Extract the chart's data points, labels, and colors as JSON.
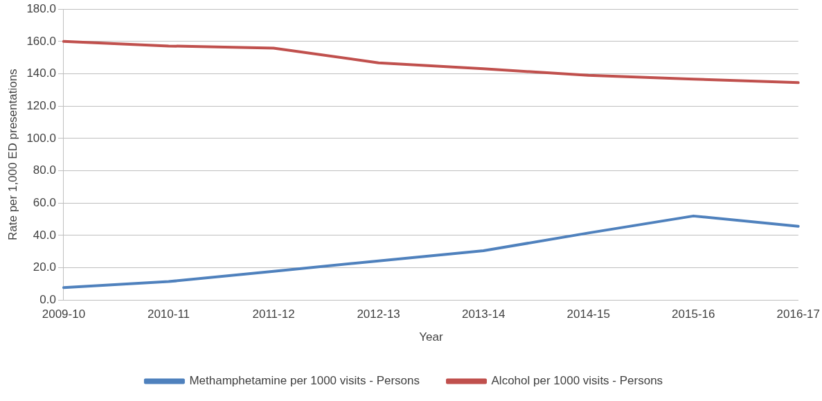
{
  "chart_data": {
    "type": "line",
    "xlabel": "Year",
    "ylabel": "Rate per 1,000 ED presentations",
    "categories": [
      "2009-10",
      "2010-11",
      "2011-12",
      "2012-13",
      "2013-14",
      "2014-15",
      "2015-16",
      "2016-17"
    ],
    "series": [
      {
        "name": "Methamphetamine per 1000 visits - Persons",
        "color": "#4f81bd",
        "values": [
          7.7,
          11.4,
          17.8,
          24.2,
          30.5,
          41.5,
          52.0,
          45.6
        ]
      },
      {
        "name": "Alcohol per 1000 visits - Persons",
        "color": "#c0504d",
        "values": [
          160.0,
          157.2,
          155.9,
          146.8,
          143.1,
          139.0,
          136.7,
          134.5
        ]
      }
    ],
    "ylim": [
      0,
      180
    ],
    "yticks": [
      {
        "value": 0,
        "label": "0.0"
      },
      {
        "value": 20,
        "label": "20.0"
      },
      {
        "value": 40,
        "label": "40.0"
      },
      {
        "value": 60,
        "label": "60.0"
      },
      {
        "value": 80,
        "label": "80.0"
      },
      {
        "value": 100,
        "label": "100.0"
      },
      {
        "value": 120,
        "label": "120.0"
      },
      {
        "value": 140,
        "label": "140.0"
      },
      {
        "value": 160,
        "label": "160.0"
      },
      {
        "value": 180,
        "label": "180.0"
      }
    ],
    "grid": "y",
    "legend": "bottom",
    "marker": "none",
    "line_style": "solid"
  }
}
